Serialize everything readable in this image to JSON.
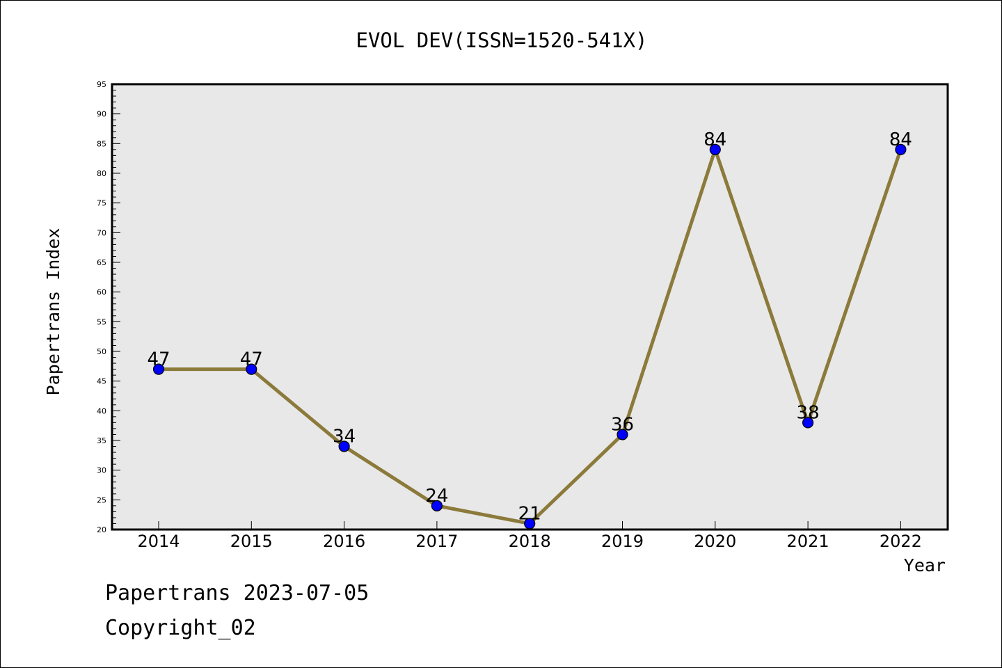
{
  "chart_data": {
    "type": "line",
    "title": "EVOL DEV(ISSN=1520-541X)",
    "xlabel": "Year",
    "ylabel": "Papertrans Index",
    "categories": [
      "2014",
      "2015",
      "2016",
      "2017",
      "2018",
      "2019",
      "2020",
      "2021",
      "2022"
    ],
    "series": [
      {
        "values": [
          47,
          47,
          34,
          24,
          21,
          36,
          84,
          38,
          84
        ]
      }
    ],
    "data_labels": [
      "47",
      "47",
      "34",
      "24",
      "21",
      "36",
      "84",
      "38",
      "84"
    ],
    "ylim": [
      20,
      95
    ],
    "y_ticks": [
      "20",
      "25",
      "30",
      "35",
      "40",
      "45",
      "50",
      "55",
      "60",
      "65",
      "70",
      "75",
      "80",
      "85",
      "90",
      "95"
    ],
    "grid": false,
    "legend": "none",
    "colors": {
      "line": "#8b7a3a",
      "marker": "#0000ff",
      "plot_background": "#e8e8e8"
    }
  },
  "footer": {
    "line1": "Papertrans 2023-07-05",
    "line2": "Copyright_02"
  }
}
